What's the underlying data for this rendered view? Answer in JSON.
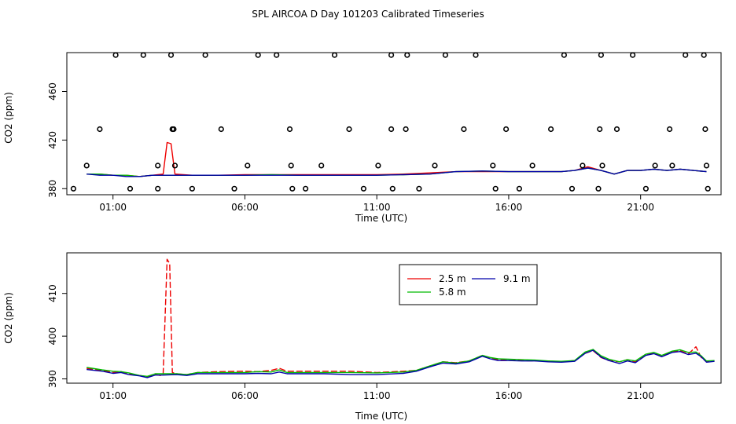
{
  "figure_title": "SPL AIRCOA D  Day 101203  Calibrated Timeseries",
  "colors": {
    "s25": "#ee0000",
    "s58": "#00bb00",
    "s91": "#0000aa",
    "frame": "#000000"
  },
  "chart_data": [
    {
      "type": "line+scatter",
      "title": "",
      "xlabel": "Time (UTC)",
      "ylabel": "CO2 (ppm)",
      "xlim": [
        -0.75,
        24.05
      ],
      "ylim": [
        375,
        492
      ],
      "x_ticks": [
        1,
        6,
        11,
        16,
        21
      ],
      "x_tick_labels": [
        "01:00",
        "06:00",
        "11:00",
        "16:00",
        "21:00"
      ],
      "y_ticks": [
        380,
        420,
        460
      ],
      "y_tick_labels": [
        "380",
        "420",
        "460"
      ],
      "series": [
        {
          "name": "2.5 m",
          "color_key": "s25",
          "dashed": false,
          "x": [
            0,
            0.5,
            1.0,
            1.5,
            2.0,
            2.5,
            2.9,
            3.05,
            3.2,
            3.35,
            4,
            5,
            6,
            7,
            8,
            9,
            10,
            11,
            12,
            13,
            14,
            15,
            16,
            17,
            18,
            18.5,
            19,
            19.5,
            20,
            20.5,
            21,
            21.5,
            22,
            22.5,
            23,
            23.5
          ],
          "y": [
            392,
            392,
            391,
            391,
            390,
            391,
            392,
            418,
            417,
            392,
            391,
            391,
            391.5,
            391.5,
            391.5,
            391.5,
            391.5,
            391.5,
            392,
            393,
            394,
            394,
            394,
            394,
            394,
            395,
            398,
            395,
            392,
            395,
            395,
            396,
            395,
            396,
            395,
            394
          ]
        },
        {
          "name": "5.8 m",
          "color_key": "s58",
          "dashed": false,
          "x": [
            0,
            0.5,
            1.0,
            1.5,
            2.0,
            2.5,
            3,
            4,
            5,
            6,
            7,
            8,
            9,
            10,
            11,
            12,
            13,
            14,
            15,
            16,
            17,
            18,
            18.5,
            19,
            19.5,
            20,
            20.5,
            21,
            21.5,
            22,
            22.5,
            23,
            23.5
          ],
          "y": [
            392,
            392,
            391,
            391,
            390,
            391,
            391,
            391,
            391,
            391,
            391.5,
            391,
            391,
            391,
            391,
            391.5,
            392,
            394,
            394.5,
            394,
            394,
            394,
            395,
            397,
            395,
            392,
            395,
            395,
            396,
            395,
            396,
            395,
            394
          ]
        },
        {
          "name": "9.1 m",
          "color_key": "s91",
          "dashed": false,
          "x": [
            0,
            0.5,
            1.0,
            1.5,
            2.0,
            2.5,
            3,
            4,
            5,
            6,
            7,
            8,
            9,
            10,
            11,
            12,
            13,
            14,
            15,
            16,
            17,
            18,
            18.5,
            19,
            19.5,
            20,
            20.5,
            21,
            21.5,
            22,
            22.5,
            23,
            23.5
          ],
          "y": [
            392,
            391,
            391,
            390,
            390,
            391,
            391,
            391,
            391,
            391,
            391,
            391,
            391,
            391,
            391,
            391.5,
            392,
            394,
            394.5,
            394,
            394,
            394,
            395,
            397,
            395,
            392,
            395,
            395,
            396,
            395,
            396,
            395,
            394
          ]
        }
      ],
      "markers": {
        "x": [
          -0.5,
          0,
          0.5,
          1.1,
          1.65,
          2.15,
          2.7,
          2.7,
          3.2,
          3.25,
          3.3,
          3.35,
          4.0,
          4.5,
          5.1,
          5.6,
          6.1,
          6.5,
          7.2,
          7.7,
          7.75,
          7.8,
          8.3,
          8.9,
          9.4,
          9.95,
          10.5,
          11.05,
          11.55,
          11.55,
          11.6,
          12.1,
          12.15,
          12.6,
          13.2,
          13.6,
          14.3,
          14.75,
          15.4,
          15.5,
          15.9,
          16.4,
          16.9,
          17.6,
          18.1,
          18.4,
          18.8,
          19.4,
          19.45,
          19.5,
          19.55,
          20.1,
          20.7,
          21.2,
          21.55,
          22.1,
          22.2,
          22.7,
          23.4,
          23.45,
          23.5,
          23.55
        ],
        "y": [
          380,
          399,
          429,
          490,
          380,
          490,
          399,
          380,
          490,
          429,
          429,
          399,
          380,
          490,
          429,
          380,
          399,
          490,
          490,
          429,
          399,
          380,
          380,
          399,
          490,
          429,
          380,
          399,
          490,
          429,
          380,
          429,
          490,
          380,
          399,
          490,
          429,
          490,
          399,
          380,
          429,
          380,
          399,
          429,
          490,
          380,
          399,
          380,
          429,
          490,
          399,
          429,
          490,
          380,
          399,
          429,
          399,
          490,
          490,
          429,
          399,
          380
        ]
      }
    },
    {
      "type": "line",
      "title": "",
      "xlabel": "Time (UTC)",
      "ylabel": "CO2 (ppm)",
      "xlim": [
        -0.75,
        24.05
      ],
      "ylim": [
        389,
        419.5
      ],
      "x_ticks": [
        1,
        6,
        11,
        16,
        21
      ],
      "x_tick_labels": [
        "01:00",
        "06:00",
        "11:00",
        "16:00",
        "21:00"
      ],
      "y_ticks": [
        390,
        400,
        410
      ],
      "y_tick_labels": [
        "390",
        "400",
        "410"
      ],
      "legend": {
        "placement": "top-right-center",
        "entries": [
          {
            "label": "2.5 m",
            "color_key": "s25"
          },
          {
            "label": "5.8 m",
            "color_key": "s58"
          },
          {
            "label": "9.1 m",
            "color_key": "s91"
          }
        ]
      },
      "series": [
        {
          "name": "2.5 m",
          "color_key": "s25",
          "dashed": true,
          "x": [
            0,
            0.3,
            0.6,
            1.0,
            1.3,
            1.6,
            2.0,
            2.3,
            2.6,
            2.8,
            2.9,
            3.05,
            3.15,
            3.25,
            3.4,
            3.8,
            4.2,
            5.0,
            6.0,
            6.5,
            7.0,
            7.3,
            7.6,
            8.0,
            9.0,
            10.0,
            11.0,
            12.0,
            12.5,
            13.0,
            13.5,
            14.0,
            14.5,
            15.0,
            15.3,
            15.6,
            16.0,
            16.5,
            17.0,
            17.5,
            18.0,
            18.5,
            18.9,
            19.2,
            19.5,
            19.8,
            20.2,
            20.5,
            20.8,
            21.2,
            21.5,
            21.8,
            22.2,
            22.5,
            22.8,
            23.1,
            23.3,
            23.5,
            23.8
          ],
          "y": [
            392.5,
            392.2,
            392.0,
            391.5,
            391.7,
            391.2,
            390.8,
            390.5,
            391.0,
            390.8,
            391.2,
            418.0,
            417.0,
            391.5,
            391.2,
            391.0,
            391.5,
            391.7,
            391.8,
            391.7,
            392.0,
            392.5,
            391.8,
            391.8,
            391.8,
            391.8,
            391.5,
            391.8,
            392.0,
            393.0,
            394.0,
            393.8,
            394.2,
            395.5,
            394.8,
            394.5,
            394.3,
            394.3,
            394.2,
            394.2,
            394.0,
            394.3,
            396.0,
            396.6,
            395.0,
            394.3,
            394.0,
            394.5,
            394.0,
            395.8,
            396.0,
            395.3,
            396.3,
            396.6,
            395.8,
            397.5,
            395.0,
            394.0,
            394.2
          ]
        },
        {
          "name": "5.8 m",
          "color_key": "s58",
          "dashed": false,
          "x": [
            0,
            0.3,
            0.6,
            1.0,
            1.3,
            1.6,
            2.0,
            2.3,
            2.6,
            2.9,
            3.4,
            3.8,
            4.2,
            5.0,
            6.0,
            6.5,
            7.0,
            7.3,
            7.6,
            8.0,
            9.0,
            10.0,
            11.0,
            12.0,
            12.5,
            13.0,
            13.5,
            14.0,
            14.5,
            15.0,
            15.3,
            15.6,
            16.0,
            16.5,
            17.0,
            17.5,
            18.0,
            18.5,
            18.9,
            19.2,
            19.5,
            19.8,
            20.2,
            20.5,
            20.8,
            21.2,
            21.5,
            21.8,
            22.2,
            22.5,
            22.8,
            23.1,
            23.3,
            23.5,
            23.8
          ],
          "y": [
            392.7,
            392.4,
            392.1,
            391.8,
            391.7,
            391.4,
            390.8,
            390.6,
            391.2,
            391.2,
            391.2,
            391.0,
            391.5,
            391.5,
            391.5,
            391.7,
            391.6,
            392.1,
            391.5,
            391.5,
            391.5,
            391.5,
            391.4,
            391.6,
            392.0,
            393.0,
            394.0,
            393.7,
            394.2,
            395.5,
            395.0,
            394.7,
            394.6,
            394.5,
            394.4,
            394.2,
            394.1,
            394.3,
            396.3,
            396.9,
            395.4,
            394.6,
            394.0,
            394.5,
            394.2,
            395.8,
            396.2,
            395.5,
            396.5,
            396.8,
            396.2,
            396.3,
            395.4,
            394.2,
            394.3
          ]
        },
        {
          "name": "9.1 m",
          "color_key": "s91",
          "dashed": false,
          "x": [
            0,
            0.3,
            0.6,
            1.0,
            1.3,
            1.6,
            2.0,
            2.3,
            2.6,
            2.9,
            3.4,
            3.8,
            4.2,
            5.0,
            6.0,
            6.5,
            7.0,
            7.3,
            7.6,
            8.0,
            9.0,
            10.0,
            11.0,
            12.0,
            12.5,
            13.0,
            13.5,
            14.0,
            14.5,
            15.0,
            15.3,
            15.6,
            16.0,
            16.5,
            17.0,
            17.5,
            18.0,
            18.5,
            18.9,
            19.2,
            19.5,
            19.8,
            20.2,
            20.5,
            20.8,
            21.2,
            21.5,
            21.8,
            22.2,
            22.5,
            22.8,
            23.1,
            23.3,
            23.5,
            23.8
          ],
          "y": [
            392.2,
            392.0,
            391.8,
            391.3,
            391.5,
            391.0,
            390.7,
            390.3,
            390.9,
            390.9,
            391.0,
            390.8,
            391.2,
            391.2,
            391.2,
            391.3,
            391.2,
            391.6,
            391.2,
            391.2,
            391.2,
            391.0,
            391.0,
            391.3,
            391.8,
            392.8,
            393.7,
            393.5,
            394.0,
            395.3,
            394.7,
            394.3,
            394.3,
            394.2,
            394.2,
            394.0,
            393.9,
            394.1,
            396.0,
            396.7,
            395.1,
            394.3,
            393.6,
            394.2,
            393.8,
            395.5,
            395.9,
            395.2,
            396.2,
            396.4,
            395.7,
            396.0,
            395.2,
            393.9,
            394.1
          ]
        }
      ]
    }
  ]
}
